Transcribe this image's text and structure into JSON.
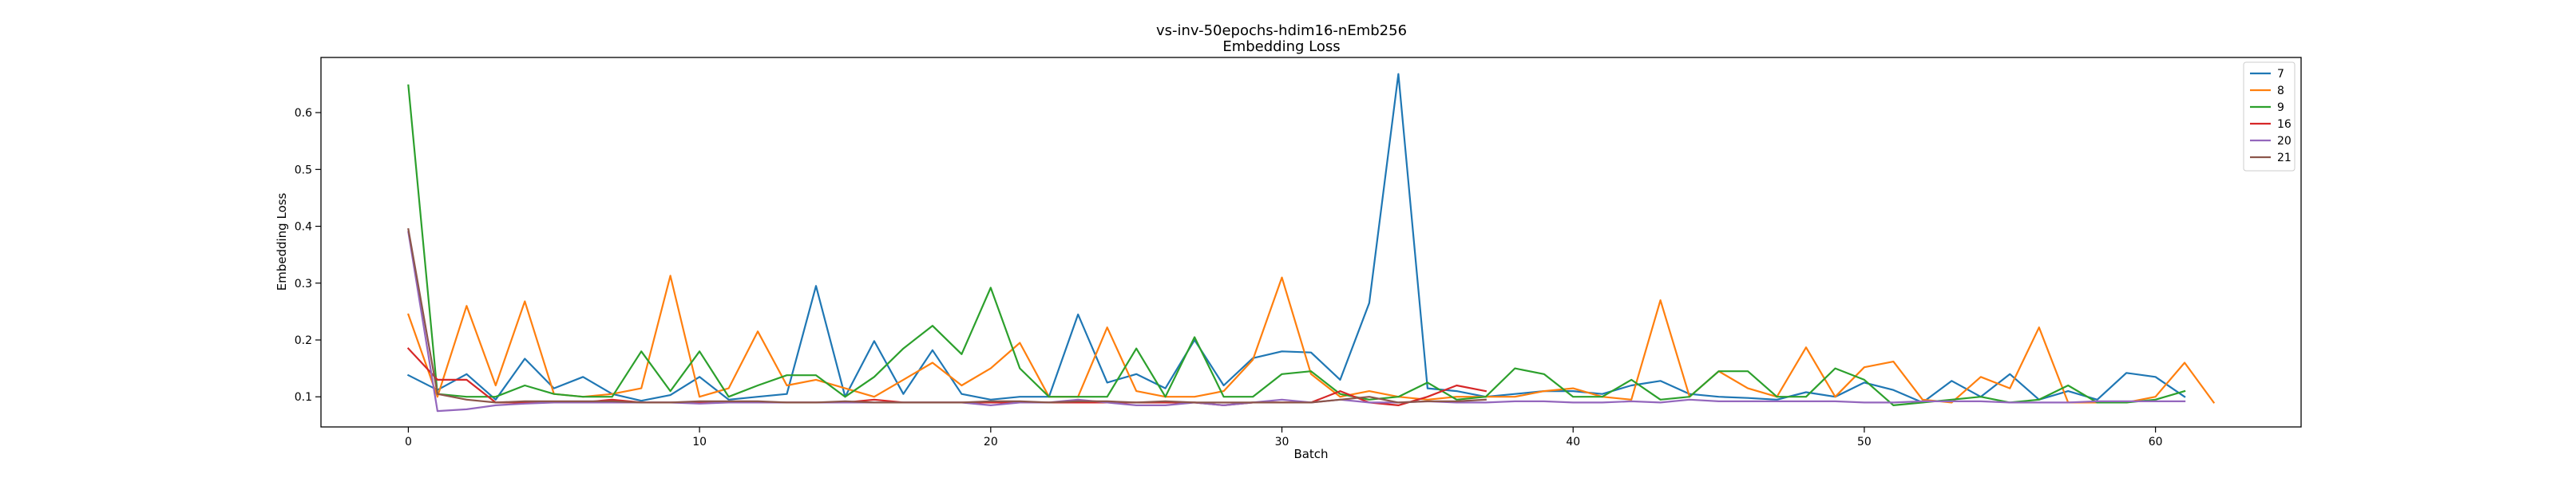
{
  "chart_data": {
    "type": "line",
    "title": "vs-inv-50epochs-hdim16-nEmb256",
    "subtitle": "Embedding Loss",
    "xlabel": "Batch",
    "ylabel": "Embedding Loss",
    "xlim": [
      -3,
      65
    ],
    "ylim": [
      0.047,
      0.697
    ],
    "xticks": [
      0,
      10,
      20,
      30,
      40,
      50,
      60
    ],
    "yticks": [
      0.1,
      0.2,
      0.3,
      0.4,
      0.5,
      0.6
    ],
    "xtick_labels": [
      "0",
      "10",
      "20",
      "30",
      "40",
      "50",
      "60"
    ],
    "ytick_labels": [
      "0.1",
      "0.2",
      "0.3",
      "0.4",
      "0.5",
      "0.6"
    ],
    "grid": false,
    "legend_position": "top-right",
    "series": [
      {
        "name": "7",
        "color": "#1f77b4",
        "x": [
          0,
          1,
          2,
          3,
          4,
          5,
          6,
          7,
          8,
          9,
          10,
          11,
          12,
          13,
          14,
          15,
          16,
          17,
          18,
          19,
          20,
          21,
          22,
          23,
          24,
          25,
          26,
          27,
          28,
          29,
          30,
          31,
          32,
          33,
          34,
          35,
          36,
          37,
          38,
          39,
          40,
          41,
          42,
          43,
          44,
          45,
          46,
          47,
          48,
          49,
          50,
          51,
          52,
          53,
          54,
          55,
          56,
          57,
          58,
          59,
          60,
          61
        ],
        "values": [
          0.138,
          0.112,
          0.14,
          0.095,
          0.167,
          0.115,
          0.135,
          0.105,
          0.093,
          0.103,
          0.135,
          0.095,
          0.1,
          0.105,
          0.295,
          0.1,
          0.198,
          0.105,
          0.182,
          0.105,
          0.095,
          0.1,
          0.1,
          0.245,
          0.125,
          0.14,
          0.115,
          0.2,
          0.12,
          0.168,
          0.18,
          0.178,
          0.13,
          0.265,
          0.668,
          0.115,
          0.11,
          0.1,
          0.105,
          0.11,
          0.11,
          0.105,
          0.12,
          0.128,
          0.105,
          0.1,
          0.098,
          0.095,
          0.108,
          0.1,
          0.125,
          0.112,
          0.09,
          0.128,
          0.1,
          0.14,
          0.095,
          0.11,
          0.095,
          0.142,
          0.135,
          0.1
        ]
      },
      {
        "name": "8",
        "color": "#ff7f0e",
        "x": [
          0,
          1,
          2,
          3,
          4,
          5,
          6,
          7,
          8,
          9,
          10,
          11,
          12,
          13,
          14,
          15,
          16,
          17,
          18,
          19,
          20,
          21,
          22,
          23,
          24,
          25,
          26,
          27,
          28,
          29,
          30,
          31,
          32,
          33,
          34,
          35,
          36,
          37,
          38,
          39,
          40,
          41,
          42,
          43,
          44,
          45,
          46,
          47,
          48,
          49,
          50,
          51,
          52,
          53,
          54,
          55,
          56,
          57,
          58,
          59,
          60,
          61,
          62
        ],
        "values": [
          0.245,
          0.1,
          0.26,
          0.12,
          0.268,
          0.105,
          0.1,
          0.105,
          0.115,
          0.313,
          0.1,
          0.115,
          0.215,
          0.12,
          0.13,
          0.115,
          0.1,
          0.13,
          0.16,
          0.12,
          0.15,
          0.195,
          0.1,
          0.1,
          0.222,
          0.11,
          0.1,
          0.1,
          0.11,
          0.165,
          0.31,
          0.14,
          0.1,
          0.11,
          0.1,
          0.095,
          0.1,
          0.1,
          0.1,
          0.11,
          0.115,
          0.1,
          0.095,
          0.27,
          0.1,
          0.145,
          0.115,
          0.1,
          0.187,
          0.1,
          0.152,
          0.162,
          0.095,
          0.09,
          0.135,
          0.115,
          0.222,
          0.09,
          0.09,
          0.09,
          0.1,
          0.16,
          0.09
        ]
      },
      {
        "name": "9",
        "color": "#2ca02c",
        "x": [
          0,
          1,
          2,
          3,
          4,
          5,
          6,
          7,
          8,
          9,
          10,
          11,
          12,
          13,
          14,
          15,
          16,
          17,
          18,
          19,
          20,
          21,
          22,
          23,
          24,
          25,
          26,
          27,
          28,
          29,
          30,
          31,
          32,
          33,
          34,
          35,
          36,
          37,
          38,
          39,
          40,
          41,
          42,
          43,
          44,
          45,
          46,
          47,
          48,
          49,
          50,
          51,
          52,
          53,
          54,
          55,
          56,
          57,
          58,
          59,
          60,
          61
        ],
        "values": [
          0.648,
          0.105,
          0.1,
          0.1,
          0.12,
          0.105,
          0.1,
          0.1,
          0.18,
          0.11,
          0.18,
          0.1,
          0.12,
          0.138,
          0.138,
          0.1,
          0.135,
          0.185,
          0.225,
          0.175,
          0.292,
          0.15,
          0.1,
          0.1,
          0.1,
          0.185,
          0.1,
          0.205,
          0.1,
          0.1,
          0.14,
          0.145,
          0.105,
          0.095,
          0.1,
          0.125,
          0.095,
          0.1,
          0.15,
          0.14,
          0.1,
          0.1,
          0.13,
          0.095,
          0.1,
          0.145,
          0.145,
          0.1,
          0.1,
          0.15,
          0.13,
          0.085,
          0.09,
          0.095,
          0.1,
          0.09,
          0.095,
          0.12,
          0.09,
          0.09,
          0.095,
          0.11
        ]
      },
      {
        "name": "16",
        "color": "#d62728",
        "x": [
          0,
          1,
          2,
          3,
          4,
          5,
          6,
          7,
          8,
          9,
          10,
          11,
          12,
          13,
          14,
          15,
          16,
          17,
          18,
          19,
          20,
          21,
          22,
          23,
          24,
          25,
          26,
          27,
          28,
          29,
          30,
          31,
          32,
          33,
          34,
          35,
          36,
          37
        ],
        "values": [
          0.185,
          0.13,
          0.13,
          0.09,
          0.09,
          0.09,
          0.09,
          0.095,
          0.09,
          0.09,
          0.09,
          0.09,
          0.09,
          0.09,
          0.09,
          0.09,
          0.095,
          0.09,
          0.09,
          0.09,
          0.09,
          0.09,
          0.09,
          0.09,
          0.09,
          0.09,
          0.09,
          0.09,
          0.085,
          0.09,
          0.09,
          0.09,
          0.11,
          0.09,
          0.085,
          0.1,
          0.12,
          0.11
        ]
      },
      {
        "name": "20",
        "color": "#9467bd",
        "x": [
          0,
          1,
          2,
          3,
          4,
          5,
          6,
          7,
          8,
          9,
          10,
          11,
          12,
          13,
          14,
          15,
          16,
          17,
          18,
          19,
          20,
          21,
          22,
          23,
          24,
          25,
          26,
          27,
          28,
          29,
          30,
          31,
          32,
          33,
          34,
          35,
          36,
          37,
          38,
          39,
          40,
          41,
          42,
          43,
          44,
          45,
          46,
          47,
          48,
          49,
          50,
          51,
          52,
          53,
          54,
          55,
          56,
          57,
          58,
          59,
          60,
          61
        ],
        "values": [
          0.39,
          0.075,
          0.078,
          0.085,
          0.088,
          0.09,
          0.09,
          0.09,
          0.09,
          0.09,
          0.088,
          0.09,
          0.09,
          0.09,
          0.09,
          0.09,
          0.09,
          0.09,
          0.09,
          0.09,
          0.085,
          0.09,
          0.09,
          0.095,
          0.09,
          0.085,
          0.085,
          0.09,
          0.085,
          0.09,
          0.095,
          0.09,
          0.095,
          0.09,
          0.09,
          0.092,
          0.09,
          0.09,
          0.092,
          0.092,
          0.09,
          0.09,
          0.092,
          0.09,
          0.095,
          0.092,
          0.092,
          0.092,
          0.092,
          0.092,
          0.09,
          0.09,
          0.092,
          0.092,
          0.092,
          0.09,
          0.09,
          0.09,
          0.092,
          0.092,
          0.092,
          0.092
        ]
      },
      {
        "name": "21",
        "color": "#8c564b",
        "x": [
          0,
          1,
          2,
          3,
          4,
          5,
          6,
          7,
          8,
          9,
          10,
          11,
          12,
          13,
          14,
          15,
          16,
          17,
          18,
          19,
          20,
          21,
          22,
          23,
          24,
          25,
          26,
          27,
          28,
          29,
          30,
          31,
          32,
          33,
          34,
          35,
          36,
          37
        ],
        "values": [
          0.395,
          0.105,
          0.095,
          0.09,
          0.092,
          0.092,
          0.092,
          0.092,
          0.09,
          0.09,
          0.092,
          0.092,
          0.092,
          0.09,
          0.09,
          0.092,
          0.09,
          0.09,
          0.09,
          0.09,
          0.092,
          0.092,
          0.09,
          0.092,
          0.092,
          0.09,
          0.092,
          0.09,
          0.09,
          0.09,
          0.09,
          0.09,
          0.095,
          0.1,
          0.09,
          0.092,
          0.092,
          0.095
        ]
      }
    ]
  }
}
